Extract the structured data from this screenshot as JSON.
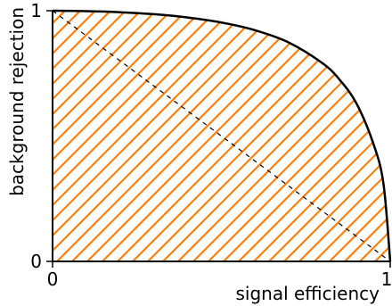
{
  "chart_data": {
    "type": "area",
    "title": "",
    "xlabel": "signal efficiency",
    "ylabel": "background rejection",
    "xlim": [
      0,
      1
    ],
    "ylim": [
      0,
      1
    ],
    "grid": false,
    "legend": "none",
    "x_ticks": [
      "0",
      "1"
    ],
    "y_ticks": [
      "0",
      "1"
    ],
    "series": [
      {
        "style": "solid",
        "color": "#000000",
        "fill": "hatched",
        "hatch_color": "#ff7f0e",
        "x": [
          0,
          0.1,
          0.2,
          0.3,
          0.4,
          0.5,
          0.6,
          0.7,
          0.8,
          0.85,
          0.9,
          0.95,
          0.98,
          1.0
        ],
        "y": [
          1.0,
          0.998,
          0.994,
          0.986,
          0.973,
          0.953,
          0.922,
          0.873,
          0.79,
          0.725,
          0.63,
          0.47,
          0.31,
          0
        ]
      },
      {
        "style": "dashed",
        "color": "#000000",
        "x": [
          0,
          1
        ],
        "y": [
          1,
          0
        ]
      }
    ]
  }
}
